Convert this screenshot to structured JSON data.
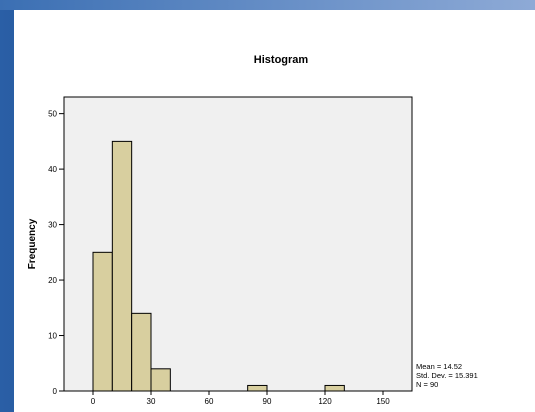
{
  "chart_data": {
    "type": "bar",
    "title": "Histogram",
    "xlabel": "",
    "ylabel": "Frequency",
    "xlim": [
      -15,
      165
    ],
    "ylim": [
      0,
      53
    ],
    "bin_width": 10,
    "bins": [
      {
        "from": 0,
        "to": 10,
        "value": 25
      },
      {
        "from": 10,
        "to": 20,
        "value": 45
      },
      {
        "from": 20,
        "to": 30,
        "value": 14
      },
      {
        "from": 30,
        "to": 40,
        "value": 4
      },
      {
        "from": 80,
        "to": 90,
        "value": 1
      },
      {
        "from": 120,
        "to": 130,
        "value": 1
      }
    ],
    "x_ticks": [
      0,
      30,
      60,
      90,
      120,
      150
    ],
    "y_ticks": [
      0,
      10,
      20,
      30,
      40,
      50
    ],
    "stats": {
      "mean": "Mean = 14.52",
      "std": "Std. Dev. = 15.391",
      "n": "N = 90"
    },
    "colors": {
      "bar_fill": "#d8cf9f",
      "bar_stroke": "#000000",
      "plot_bg": "#f0f0f0"
    }
  }
}
